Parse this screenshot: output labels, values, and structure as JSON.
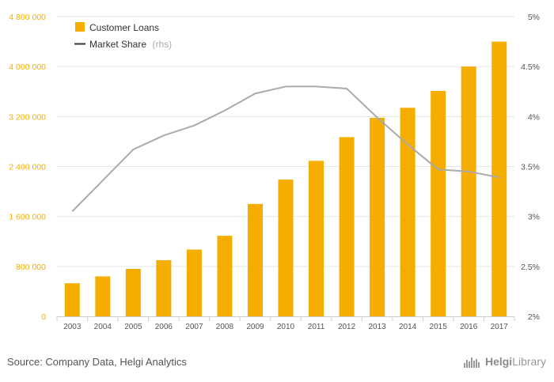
{
  "chart_data": {
    "type": "bar",
    "title": "",
    "categories": [
      "2003",
      "2004",
      "2005",
      "2006",
      "2007",
      "2008",
      "2009",
      "2010",
      "2011",
      "2012",
      "2013",
      "2014",
      "2015",
      "2016",
      "2017"
    ],
    "series": [
      {
        "name": "Customer Loans",
        "type": "bar",
        "axis": "left",
        "color": "#f5ae00",
        "values": [
          530000,
          640000,
          760000,
          900000,
          1070000,
          1290000,
          1800000,
          2190000,
          2490000,
          2870000,
          3180000,
          3340000,
          3610000,
          4000000,
          4400000
        ]
      },
      {
        "name": "Market Share",
        "name_suffix": "(rhs)",
        "type": "line",
        "axis": "right",
        "color": "#aaaaaa",
        "values": [
          3.05,
          3.36,
          3.67,
          3.81,
          3.91,
          4.06,
          4.23,
          4.3,
          4.3,
          4.28,
          3.99,
          3.72,
          3.47,
          3.45,
          3.39
        ]
      }
    ],
    "left_axis": {
      "min": 0,
      "max": 4800000,
      "ticks": [
        0,
        800000,
        1600000,
        2400000,
        3200000,
        4000000,
        4800000
      ],
      "tick_labels": [
        "0",
        "800 000",
        "1 600 000",
        "2 400 000",
        "3 200 000",
        "4 000 000",
        "4 800 000"
      ],
      "color": "#f5ae00"
    },
    "right_axis": {
      "min": 2,
      "max": 5,
      "ticks": [
        2,
        2.5,
        3,
        3.5,
        4,
        4.5,
        5
      ],
      "tick_labels": [
        "2%",
        "2.5%",
        "3%",
        "3.5%",
        "4%",
        "4.5%",
        "5%"
      ],
      "color": "#555555"
    },
    "xlabel": "",
    "ylabel": "",
    "grid": true,
    "legend_position": "top-left"
  },
  "footer": {
    "source": "Source: Company Data, Helgi Analytics",
    "brand_prefix": "Helgi",
    "brand_suffix": "Library"
  }
}
